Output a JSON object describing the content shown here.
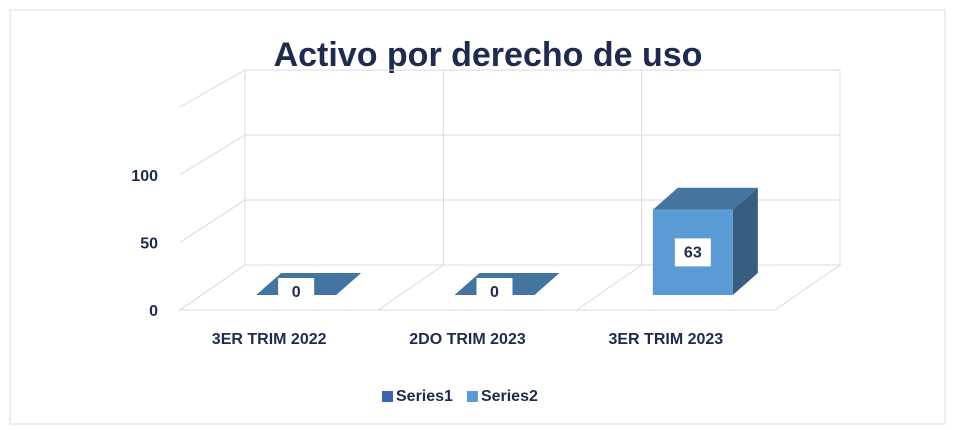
{
  "chart_data": {
    "type": "bar3d",
    "title": "Activo por derecho de uso",
    "categories": [
      "3ER TRIM 2022",
      "2DO TRIM 2023",
      "3ER TRIM 2023"
    ],
    "series": [
      {
        "name": "Series1",
        "color": "#3f63b4",
        "values": [
          null,
          null,
          null
        ]
      },
      {
        "name": "Series2",
        "color": "#5b9bd5",
        "values": [
          0,
          0,
          63
        ]
      }
    ],
    "ylim": [
      0,
      150
    ],
    "yticks": [
      0,
      50,
      100
    ],
    "grid": true,
    "legend": "bottom"
  }
}
